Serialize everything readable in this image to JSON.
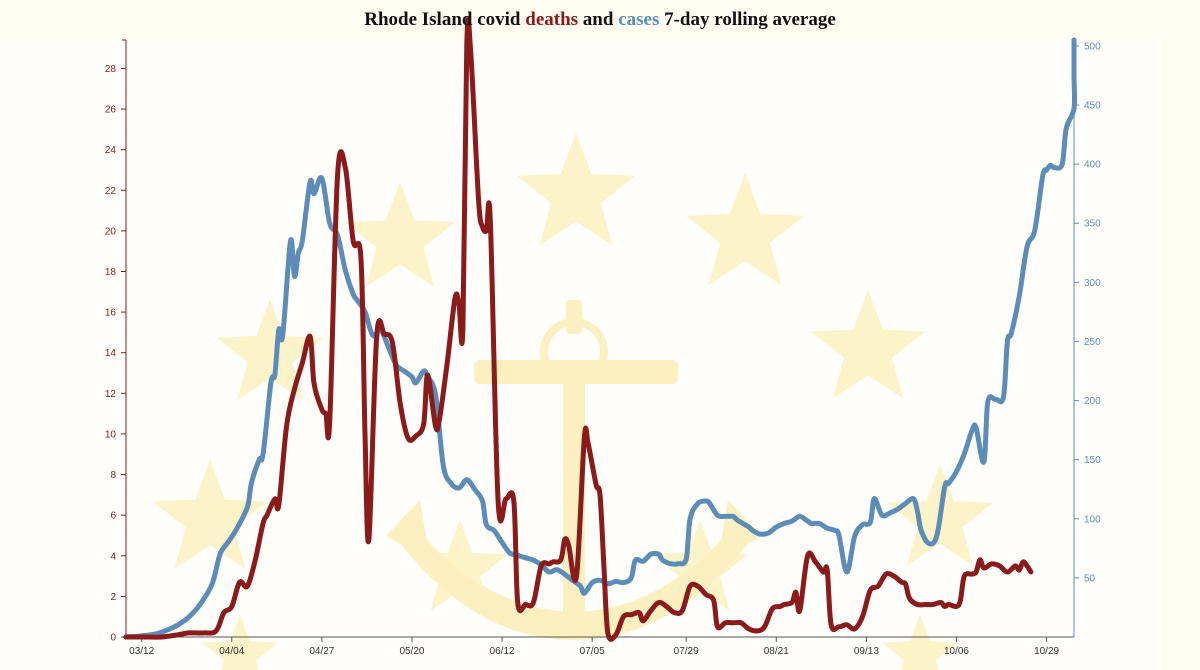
{
  "chart_data": {
    "type": "line",
    "title": {
      "prefix": "Rhode Island covid ",
      "deaths_word": "deaths",
      "middle": " and ",
      "cases_word": "cases",
      "suffix": " 7-day rolling average"
    },
    "x_tick_labels": [
      "03/12",
      "04/04",
      "04/27",
      "05/20",
      "06/12",
      "07/05",
      "07/29",
      "08/21",
      "09/13",
      "10/06",
      "10/29"
    ],
    "x_tick_days": [
      0,
      23,
      46,
      69,
      92,
      115,
      139,
      162,
      185,
      208,
      231
    ],
    "x_range_days": [
      -4,
      238
    ],
    "left_axis": {
      "ylim": [
        0,
        29.4
      ],
      "ticks": [
        0,
        2,
        4,
        6,
        8,
        10,
        12,
        14,
        16,
        18,
        20,
        22,
        24,
        26,
        28
      ]
    },
    "right_axis": {
      "ylim": [
        0,
        505
      ],
      "ticks": [
        50,
        100,
        150,
        200,
        250,
        300,
        350,
        400,
        450,
        500
      ]
    },
    "colors": {
      "deaths": "#8b1a1a",
      "cases": "#5b8db8",
      "title": "#111111",
      "background": "#fffdf2",
      "emblem": "#fdf2c4"
    },
    "series": [
      {
        "key": "deaths",
        "axis": "left",
        "points": [
          [
            -4,
            0
          ],
          [
            0,
            0
          ],
          [
            5,
            0
          ],
          [
            9,
            0.1
          ],
          [
            12,
            0.2
          ],
          [
            16,
            0.2
          ],
          [
            19,
            0.3
          ],
          [
            21,
            1.2
          ],
          [
            23,
            1.5
          ],
          [
            25,
            2.7
          ],
          [
            27,
            2.5
          ],
          [
            29,
            3.8
          ],
          [
            31,
            5.6
          ],
          [
            32,
            6
          ],
          [
            34,
            6.8
          ],
          [
            35,
            6.5
          ],
          [
            37,
            10.4
          ],
          [
            39,
            12.2
          ],
          [
            41,
            13.5
          ],
          [
            43,
            14.8
          ],
          [
            44,
            12.5
          ],
          [
            46,
            11.2
          ],
          [
            47,
            11
          ],
          [
            48,
            10.6
          ],
          [
            50,
            22.7
          ],
          [
            52,
            23.1
          ],
          [
            54,
            19.5
          ],
          [
            56,
            18.6
          ],
          [
            57,
            10
          ],
          [
            58,
            4.8
          ],
          [
            60,
            14.8
          ],
          [
            62,
            14.9
          ],
          [
            64,
            14.5
          ],
          [
            66,
            11.5
          ],
          [
            68,
            9.8
          ],
          [
            70,
            9.9
          ],
          [
            72,
            10.5
          ],
          [
            73,
            12.9
          ],
          [
            75,
            10.4
          ],
          [
            76,
            10.7
          ],
          [
            78,
            13.5
          ],
          [
            80,
            16.7
          ],
          [
            81,
            16.4
          ],
          [
            82,
            15.2
          ],
          [
            83,
            29.2
          ],
          [
            84,
            28.8
          ],
          [
            86,
            21.5
          ],
          [
            87,
            20.2
          ],
          [
            88,
            20
          ],
          [
            89,
            20.5
          ],
          [
            91,
            6.7
          ],
          [
            93,
            6.8
          ],
          [
            95,
            6.7
          ],
          [
            96,
            1.7
          ],
          [
            98,
            1.6
          ],
          [
            100,
            1.7
          ],
          [
            102,
            3.5
          ],
          [
            104,
            3.6
          ],
          [
            105,
            3.7
          ],
          [
            107,
            3.8
          ],
          [
            108,
            4.8
          ],
          [
            109,
            4.5
          ],
          [
            111,
            3
          ],
          [
            113,
            9.8
          ],
          [
            114,
            9.5
          ],
          [
            116,
            7.5
          ],
          [
            117,
            7
          ],
          [
            118,
            3.5
          ],
          [
            119,
            0.2
          ],
          [
            121,
            0.1
          ],
          [
            123,
            1
          ],
          [
            125,
            1.1
          ],
          [
            127,
            1.2
          ],
          [
            128,
            0.8
          ],
          [
            130,
            1.3
          ],
          [
            132,
            1.7
          ],
          [
            134,
            1.5
          ],
          [
            136,
            1.2
          ],
          [
            138,
            1.3
          ],
          [
            140,
            2.5
          ],
          [
            142,
            2.5
          ],
          [
            144,
            2.1
          ],
          [
            146,
            1.8
          ],
          [
            147,
            0.5
          ],
          [
            149,
            0.7
          ],
          [
            151,
            0.7
          ],
          [
            153,
            0.7
          ],
          [
            155,
            0.4
          ],
          [
            157,
            0.3
          ],
          [
            159,
            0.5
          ],
          [
            161,
            1.4
          ],
          [
            163,
            1.5
          ],
          [
            164,
            1.6
          ],
          [
            166,
            1.7
          ],
          [
            167,
            2.2
          ],
          [
            168,
            1.3
          ],
          [
            170,
            4
          ],
          [
            172,
            3.7
          ],
          [
            174,
            3.2
          ],
          [
            175,
            3.3
          ],
          [
            176,
            0.6
          ],
          [
            178,
            0.5
          ],
          [
            180,
            0.6
          ],
          [
            182,
            0.4
          ],
          [
            184,
            1
          ],
          [
            186,
            2.3
          ],
          [
            188,
            2.5
          ],
          [
            190,
            3.1
          ],
          [
            192,
            3
          ],
          [
            194,
            2.7
          ],
          [
            195,
            2.6
          ],
          [
            196,
            1.9
          ],
          [
            198,
            1.6
          ],
          [
            200,
            1.6
          ],
          [
            202,
            1.6
          ],
          [
            204,
            1.7
          ],
          [
            205,
            1.5
          ],
          [
            206,
            1.6
          ],
          [
            208,
            1.5
          ],
          [
            209,
            1.8
          ],
          [
            210,
            3
          ],
          [
            212,
            3.1
          ],
          [
            213,
            3.2
          ],
          [
            214,
            3.8
          ],
          [
            215,
            3.4
          ],
          [
            217,
            3.6
          ],
          [
            219,
            3.5
          ],
          [
            221,
            3.2
          ],
          [
            223,
            3.5
          ],
          [
            224,
            3.3
          ],
          [
            225,
            3.7
          ],
          [
            226,
            3.5
          ],
          [
            227,
            3.2
          ]
        ]
      },
      {
        "key": "cases",
        "axis": "right",
        "points": [
          [
            -4,
            0
          ],
          [
            0,
            1
          ],
          [
            4,
            3
          ],
          [
            8,
            8
          ],
          [
            11,
            14
          ],
          [
            13,
            20
          ],
          [
            15,
            28
          ],
          [
            18,
            45
          ],
          [
            20,
            70
          ],
          [
            22,
            80
          ],
          [
            24,
            90
          ],
          [
            27,
            110
          ],
          [
            28,
            130
          ],
          [
            30,
            150
          ],
          [
            31,
            155
          ],
          [
            33,
            215
          ],
          [
            34,
            222
          ],
          [
            35,
            260
          ],
          [
            36,
            255
          ],
          [
            38,
            335
          ],
          [
            39,
            305
          ],
          [
            40,
            325
          ],
          [
            41,
            335
          ],
          [
            43,
            385
          ],
          [
            44,
            375
          ],
          [
            46,
            388
          ],
          [
            48,
            350
          ],
          [
            50,
            340
          ],
          [
            52,
            310
          ],
          [
            54,
            290
          ],
          [
            55,
            285
          ],
          [
            57,
            275
          ],
          [
            59,
            255
          ],
          [
            61,
            260
          ],
          [
            63,
            245
          ],
          [
            65,
            230
          ],
          [
            67,
            225
          ],
          [
            69,
            220
          ],
          [
            70,
            215
          ],
          [
            72,
            225
          ],
          [
            73,
            220
          ],
          [
            75,
            205
          ],
          [
            77,
            145
          ],
          [
            79,
            130
          ],
          [
            81,
            126
          ],
          [
            83,
            133
          ],
          [
            85,
            125
          ],
          [
            87,
            115
          ],
          [
            88,
            95
          ],
          [
            90,
            90
          ],
          [
            92,
            80
          ],
          [
            94,
            71
          ],
          [
            96,
            69
          ],
          [
            98,
            67
          ],
          [
            100,
            65
          ],
          [
            102,
            61
          ],
          [
            104,
            55
          ],
          [
            106,
            57
          ],
          [
            108,
            53
          ],
          [
            110,
            48
          ],
          [
            112,
            43
          ],
          [
            113,
            37
          ],
          [
            115,
            46
          ],
          [
            117,
            48
          ],
          [
            119,
            45
          ],
          [
            121,
            47
          ],
          [
            123,
            46
          ],
          [
            125,
            50
          ],
          [
            126,
            65
          ],
          [
            128,
            64
          ],
          [
            130,
            70
          ],
          [
            132,
            70
          ],
          [
            133,
            65
          ],
          [
            135,
            62
          ],
          [
            137,
            62
          ],
          [
            139,
            66
          ],
          [
            140,
            100
          ],
          [
            142,
            113
          ],
          [
            144,
            115
          ],
          [
            145,
            113
          ],
          [
            147,
            103
          ],
          [
            149,
            102
          ],
          [
            151,
            102
          ],
          [
            152,
            99
          ],
          [
            154,
            95
          ],
          [
            155,
            93
          ],
          [
            156,
            90
          ],
          [
            158,
            87
          ],
          [
            160,
            88
          ],
          [
            162,
            93
          ],
          [
            164,
            96
          ],
          [
            166,
            98
          ],
          [
            168,
            102
          ],
          [
            170,
            98
          ],
          [
            171,
            96
          ],
          [
            173,
            96
          ],
          [
            175,
            92
          ],
          [
            177,
            90
          ],
          [
            178,
            86
          ],
          [
            180,
            55
          ],
          [
            182,
            85
          ],
          [
            184,
            95
          ],
          [
            186,
            97
          ],
          [
            187,
            117
          ],
          [
            189,
            103
          ],
          [
            191,
            105
          ],
          [
            193,
            108
          ],
          [
            195,
            113
          ],
          [
            197,
            117
          ],
          [
            198,
            107
          ],
          [
            199,
            90
          ],
          [
            201,
            79
          ],
          [
            203,
            86
          ],
          [
            205,
            127
          ],
          [
            206,
            130
          ],
          [
            208,
            140
          ],
          [
            210,
            155
          ],
          [
            212,
            175
          ],
          [
            213,
            177
          ],
          [
            215,
            148
          ],
          [
            216,
            199
          ],
          [
            218,
            201
          ],
          [
            220,
            203
          ],
          [
            221,
            250
          ],
          [
            222,
            257
          ],
          [
            224,
            288
          ],
          [
            226,
            330
          ],
          [
            228,
            344
          ],
          [
            230,
            390
          ],
          [
            231,
            395
          ],
          [
            232,
            399
          ],
          [
            233,
            397
          ],
          [
            235,
            400
          ],
          [
            236,
            430
          ],
          [
            238,
            447
          ],
          [
            240,
            475
          ],
          [
            242,
            500
          ],
          [
            244,
            507
          ]
        ]
      }
    ]
  }
}
